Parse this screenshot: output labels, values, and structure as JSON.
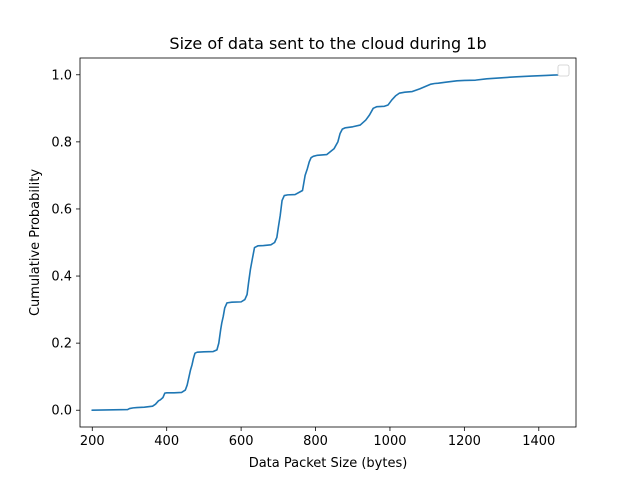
{
  "chart_data": {
    "type": "line",
    "title": "Size of data sent to the cloud during 1b",
    "xlabel": "Data Packet Size (bytes)",
    "ylabel": "Cumulative Probability",
    "xlim": [
      167,
      1500
    ],
    "ylim": [
      -0.05,
      1.05
    ],
    "x_ticks": [
      200,
      400,
      600,
      800,
      1000,
      1200,
      1400
    ],
    "x_tick_labels": [
      "200",
      "400",
      "600",
      "800",
      "1000",
      "1200",
      "1400"
    ],
    "y_ticks": [
      0.0,
      0.2,
      0.4,
      0.6,
      0.8,
      1.0
    ],
    "y_tick_labels": [
      "0.0",
      "0.2",
      "0.4",
      "0.6",
      "0.8",
      "1.0"
    ],
    "grid": false,
    "legend": {
      "placement": "top-right",
      "entries": []
    },
    "series": [
      {
        "color": "#1f77b4",
        "x": [
          200,
          295,
          300,
          310,
          320,
          340,
          362,
          370,
          378,
          383,
          390,
          395,
          400,
          420,
          440,
          450,
          455,
          460,
          464,
          468,
          472,
          476,
          482,
          500,
          525,
          535,
          540,
          545,
          548,
          552,
          556,
          562,
          575,
          600,
          610,
          616,
          620,
          625,
          630,
          636,
          645,
          660,
          680,
          690,
          696,
          700,
          705,
          710,
          716,
          725,
          745,
          765,
          772,
          778,
          783,
          788,
          794,
          805,
          830,
          850,
          860,
          866,
          872,
          880,
          900,
          920,
          935,
          945,
          955,
          965,
          985,
          995,
          1005,
          1015,
          1025,
          1040,
          1060,
          1080,
          1095,
          1110,
          1120,
          1130,
          1150,
          1180,
          1200,
          1230,
          1260,
          1300,
          1340,
          1380,
          1420,
          1440,
          1465
        ],
        "y": [
          0.0,
          0.002,
          0.005,
          0.007,
          0.008,
          0.009,
          0.012,
          0.018,
          0.028,
          0.031,
          0.038,
          0.051,
          0.052,
          0.052,
          0.053,
          0.06,
          0.075,
          0.1,
          0.12,
          0.135,
          0.155,
          0.17,
          0.173,
          0.174,
          0.175,
          0.18,
          0.2,
          0.24,
          0.26,
          0.28,
          0.305,
          0.32,
          0.322,
          0.323,
          0.33,
          0.345,
          0.38,
          0.42,
          0.45,
          0.485,
          0.49,
          0.491,
          0.493,
          0.5,
          0.515,
          0.545,
          0.58,
          0.625,
          0.64,
          0.642,
          0.643,
          0.655,
          0.7,
          0.72,
          0.74,
          0.753,
          0.757,
          0.76,
          0.762,
          0.78,
          0.8,
          0.825,
          0.838,
          0.842,
          0.845,
          0.85,
          0.865,
          0.88,
          0.9,
          0.905,
          0.906,
          0.91,
          0.925,
          0.937,
          0.945,
          0.948,
          0.95,
          0.958,
          0.965,
          0.972,
          0.974,
          0.975,
          0.978,
          0.982,
          0.983,
          0.984,
          0.988,
          0.991,
          0.994,
          0.996,
          0.998,
          0.999,
          1.0
        ]
      }
    ]
  }
}
